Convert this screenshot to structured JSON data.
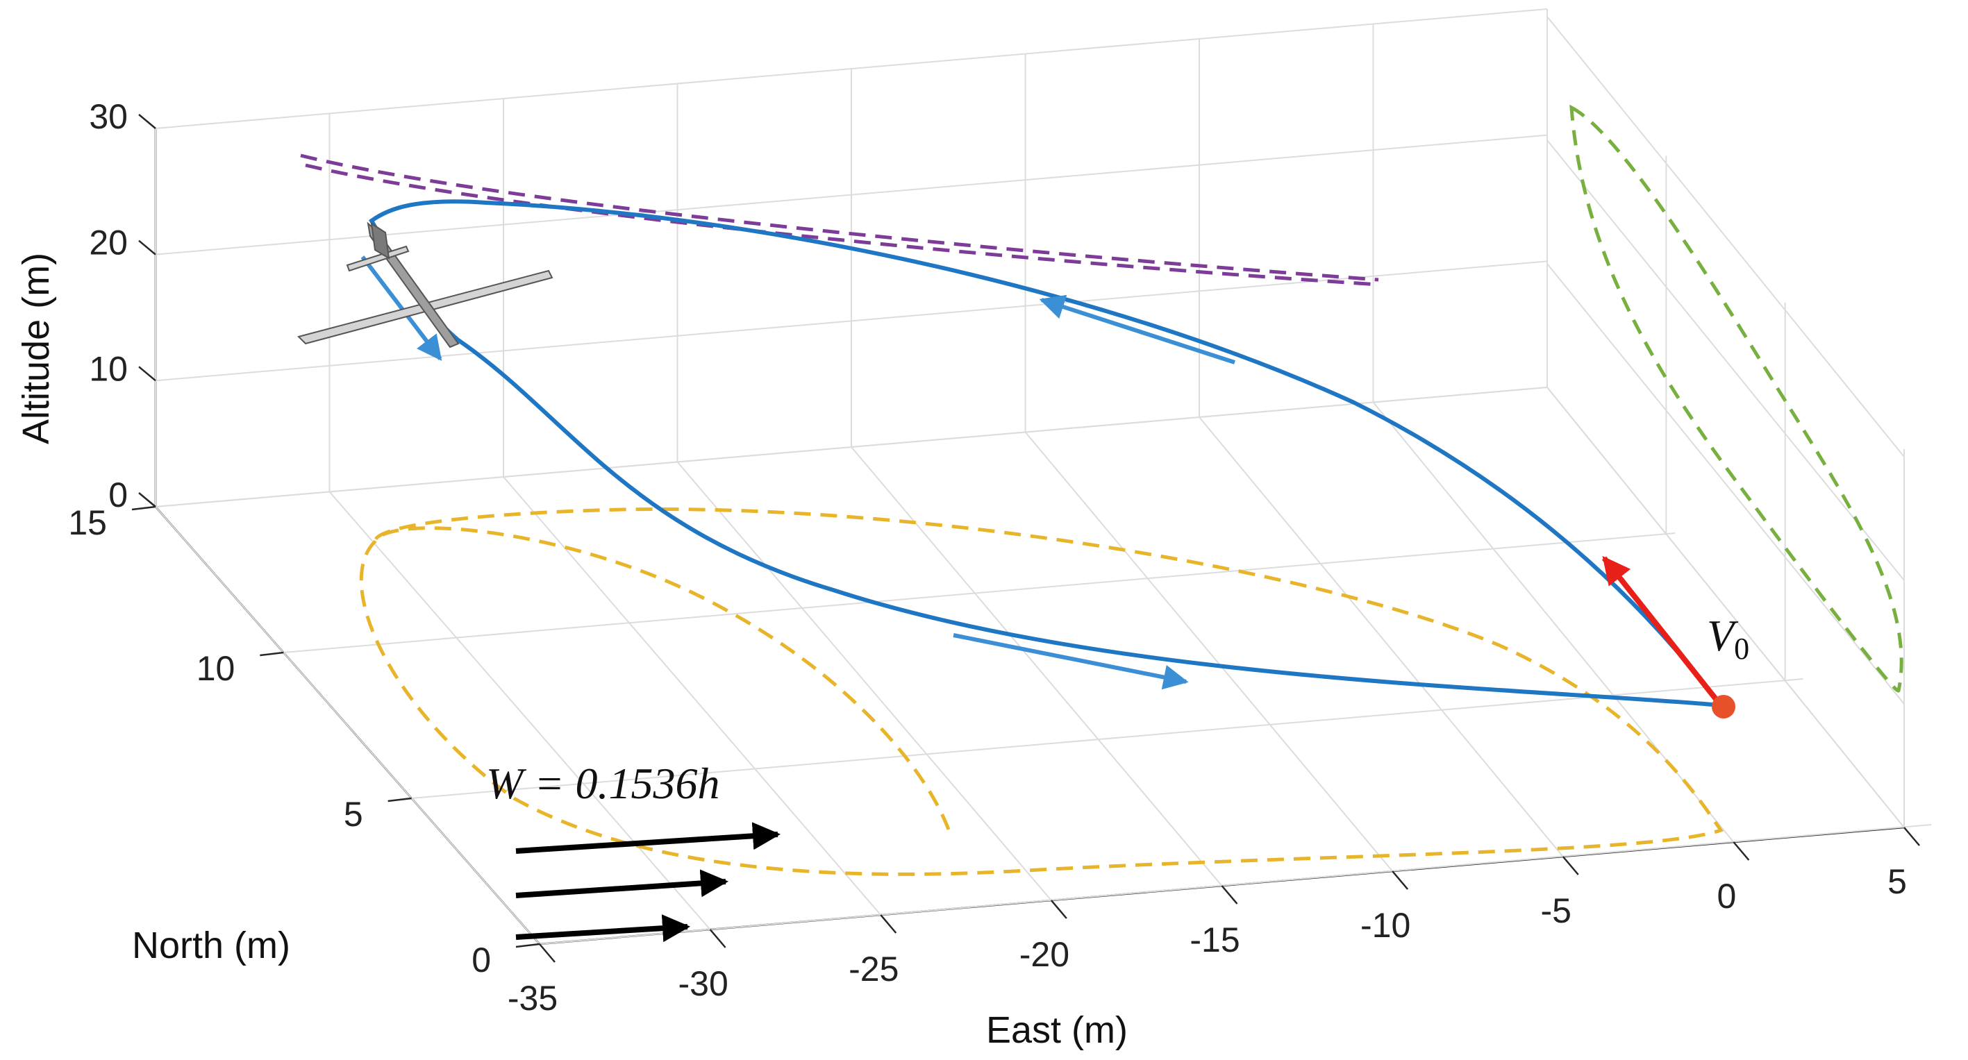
{
  "chart_data": {
    "type": "line",
    "projection": "3d",
    "title": "",
    "xlabel": "East (m)",
    "ylabel": "North (m)",
    "zlabel": "Altitude (m)",
    "xlim": [
      -35,
      5
    ],
    "ylim": [
      0,
      15
    ],
    "zlim": [
      0,
      30
    ],
    "xticks": [
      "-35",
      "-30",
      "-25",
      "-20",
      "-15",
      "-10",
      "-5",
      "0",
      "5"
    ],
    "yticks": [
      "0",
      "5",
      "10",
      "15"
    ],
    "zticks": [
      "0",
      "10",
      "20",
      "30"
    ],
    "grid": true,
    "series": [
      {
        "role": "trajectory",
        "style": "solid",
        "color": "#1f77c4",
        "points": [
          [
            -1,
            2,
            0
          ],
          [
            -8,
            3.5,
            5
          ],
          [
            -16,
            5.5,
            10
          ],
          [
            -24,
            8,
            15
          ],
          [
            -30,
            10,
            20
          ],
          [
            -33,
            11,
            22
          ],
          [
            -34,
            12,
            24
          ],
          [
            -32,
            12,
            25
          ],
          [
            -25,
            10,
            24
          ],
          [
            -16,
            7.5,
            22
          ],
          [
            -8,
            5,
            17
          ],
          [
            -3,
            3,
            10
          ],
          [
            -1,
            2,
            0
          ]
        ]
      },
      {
        "role": "projection-ground",
        "style": "dashed",
        "color": "#e8b52a"
      },
      {
        "role": "projection-east-wall",
        "style": "dashed",
        "color": "#78b040"
      },
      {
        "role": "projection-north-wall",
        "style": "dashed",
        "color": "#7d3c98"
      }
    ],
    "annotations": {
      "start_velocity": {
        "label_base": "V",
        "label_sub": "0",
        "color": "#e8201a",
        "marker_color": "#e8502a"
      },
      "wind": {
        "label": "W = 0.1536h",
        "arrow_count": 3,
        "color": "#000000"
      },
      "direction_arrow_color": "#3b8fd4",
      "aircraft_icon": "glider-icon"
    }
  }
}
